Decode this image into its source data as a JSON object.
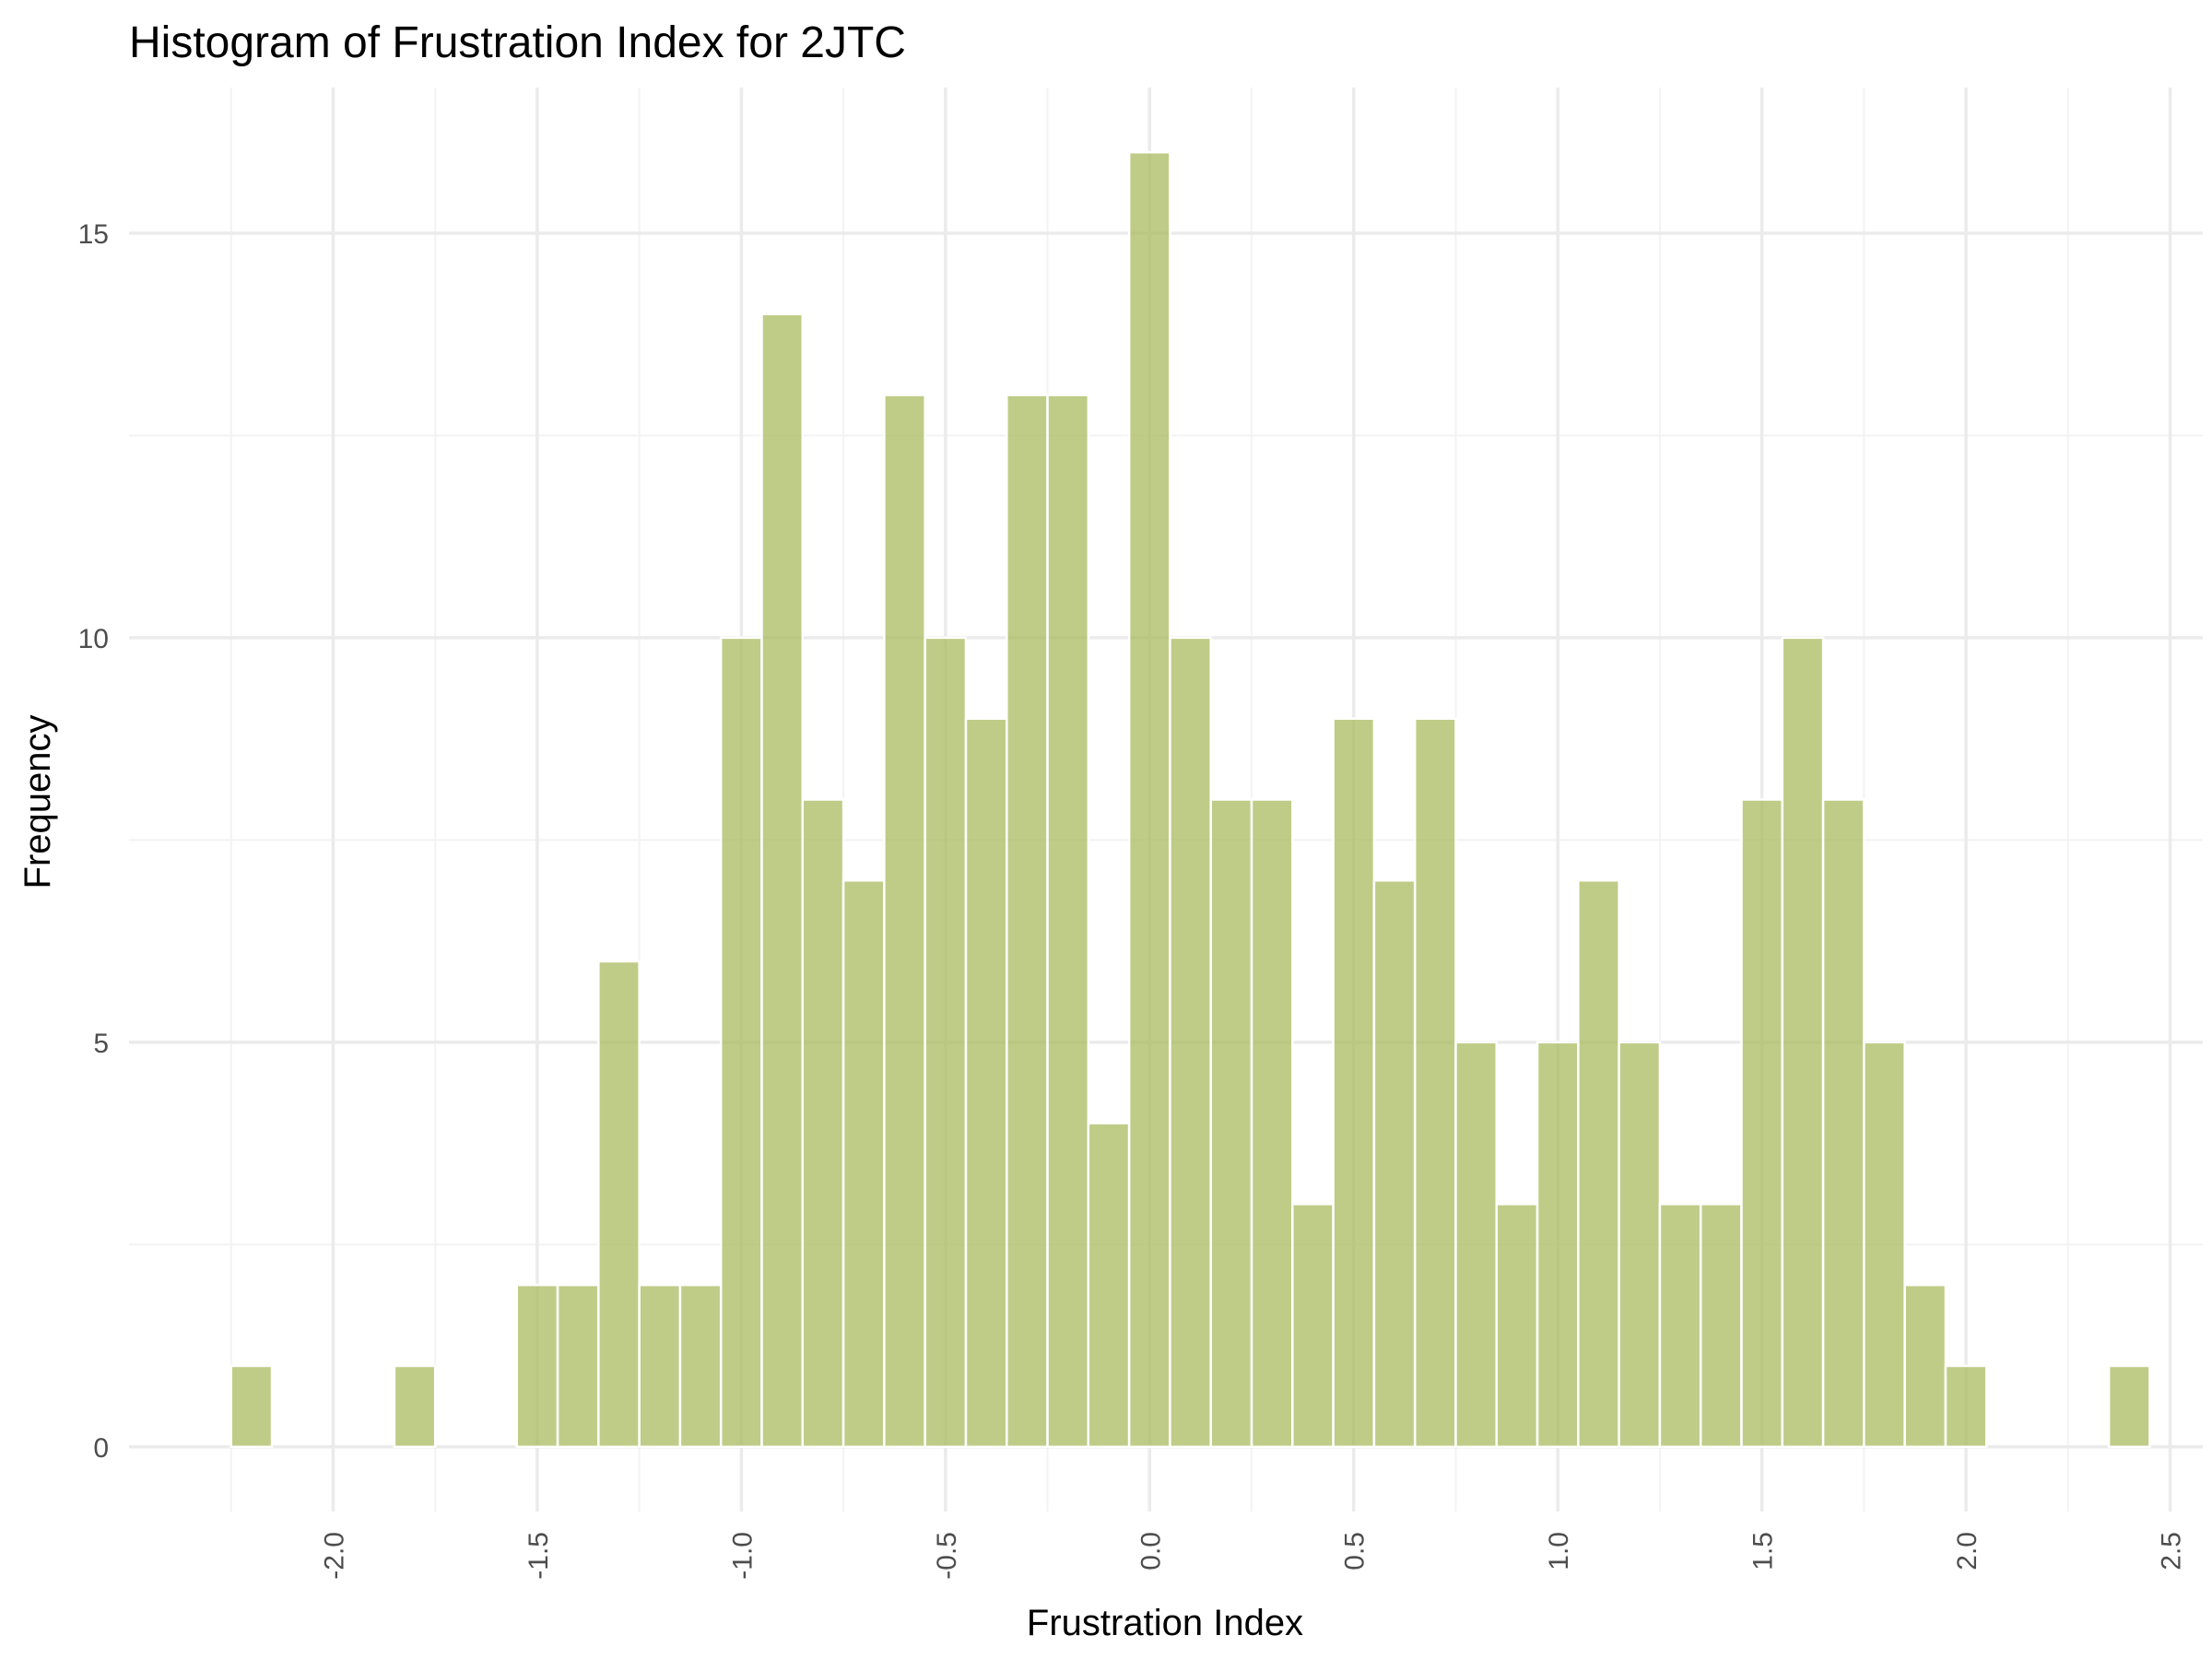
{
  "chart_data": {
    "type": "bar",
    "title": "Histogram of Frustration Index for 2JTC",
    "xlabel": "Frustration Index",
    "ylabel": "Frequency",
    "bar_color": "#a9bb5f",
    "bar_opacity": 0.75,
    "bin_width": 0.1,
    "bin_centers": [
      -2.2,
      -2.1,
      -2.0,
      -1.9,
      -1.8,
      -1.7,
      -1.6,
      -1.5,
      -1.4,
      -1.3,
      -1.2,
      -1.1,
      -1.0,
      -0.9,
      -0.8,
      -0.7,
      -0.6,
      -0.5,
      -0.4,
      -0.3,
      -0.2,
      -0.1,
      0.0,
      0.1,
      0.2,
      0.3,
      0.4,
      0.5,
      0.6,
      0.7,
      0.8,
      0.9,
      1.0,
      1.1,
      1.2,
      1.3,
      1.4,
      1.5,
      1.6,
      1.7,
      1.8,
      1.9,
      2.0,
      2.1,
      2.2,
      2.3,
      2.4
    ],
    "values": [
      1,
      0,
      0,
      0,
      1,
      0,
      0,
      2,
      2,
      6,
      2,
      2,
      10,
      14,
      8,
      7,
      13,
      10,
      9,
      13,
      13,
      4,
      16,
      10,
      8,
      8,
      3,
      9,
      7,
      9,
      5,
      3,
      5,
      7,
      5,
      3,
      3,
      8,
      10,
      8,
      5,
      2,
      1,
      0,
      0,
      0,
      1
    ],
    "xlim": [
      -2.5,
      2.58
    ],
    "ylim": [
      -0.8,
      16.8
    ],
    "x_ticks": [
      -2.0,
      -1.5,
      -1.0,
      -0.5,
      0.0,
      0.5,
      1.0,
      1.5,
      2.0,
      2.5
    ],
    "x_tick_labels": [
      "-2.0",
      "-1.5",
      "-1.0",
      "-0.5",
      "0.0",
      "0.5",
      "1.0",
      "1.5",
      "2.0",
      "2.5"
    ],
    "x_minor_ticks": [
      -2.25,
      -1.75,
      -1.25,
      -0.75,
      -0.25,
      0.25,
      0.75,
      1.25,
      1.75,
      2.25
    ],
    "y_ticks": [
      0,
      5,
      10,
      15
    ],
    "y_tick_labels": [
      "0",
      "5",
      "10",
      "15"
    ],
    "y_minor_ticks": [
      2.5,
      7.5,
      12.5
    ],
    "grid": true,
    "legend": "none"
  }
}
